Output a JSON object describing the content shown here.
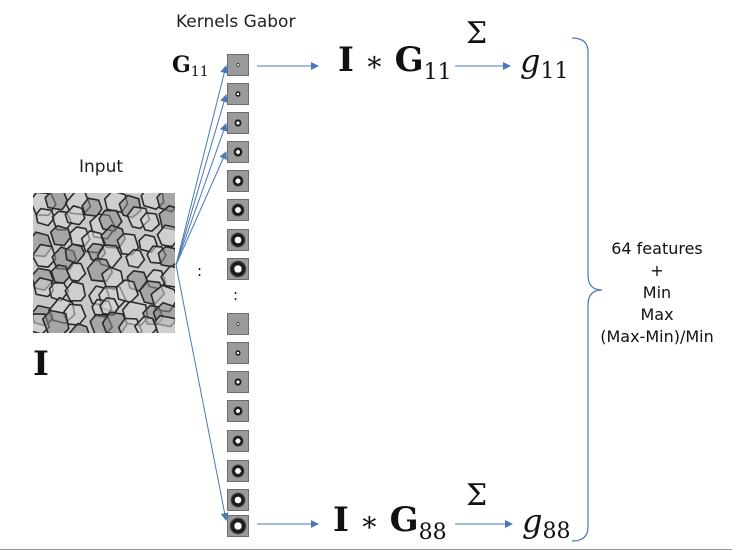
{
  "labels": {
    "kernels_title": "Kernels Gabor",
    "input_title": "Input",
    "input_symbol": "I"
  },
  "math": {
    "g11_kernel": {
      "base": "G",
      "sub": "11"
    },
    "top_conv": {
      "I": "I",
      "op": "∗",
      "G": "G",
      "sub": "11"
    },
    "top_sum": "Σ",
    "top_out": {
      "base": "g",
      "sub": "11"
    },
    "bottom_conv": {
      "I": "I",
      "op": "∗",
      "G": "G",
      "sub": "88"
    },
    "bottom_sum": "Σ",
    "bottom_out": {
      "base": "g",
      "sub": "88"
    }
  },
  "ellipsis": {
    "middle": ":",
    "column": ":"
  },
  "features": {
    "line1": "64 features",
    "line2": "+",
    "line3": "Min",
    "line4": "Max",
    "line5": "(Max-Min)/Min"
  },
  "colors": {
    "arrow": "#4a78b5",
    "brace": "#4a78b5",
    "kernel_bg": "#9a9a9a"
  },
  "icons": {
    "input_image": "cell-texture-image",
    "kernel": "gabor-kernel-icon"
  }
}
